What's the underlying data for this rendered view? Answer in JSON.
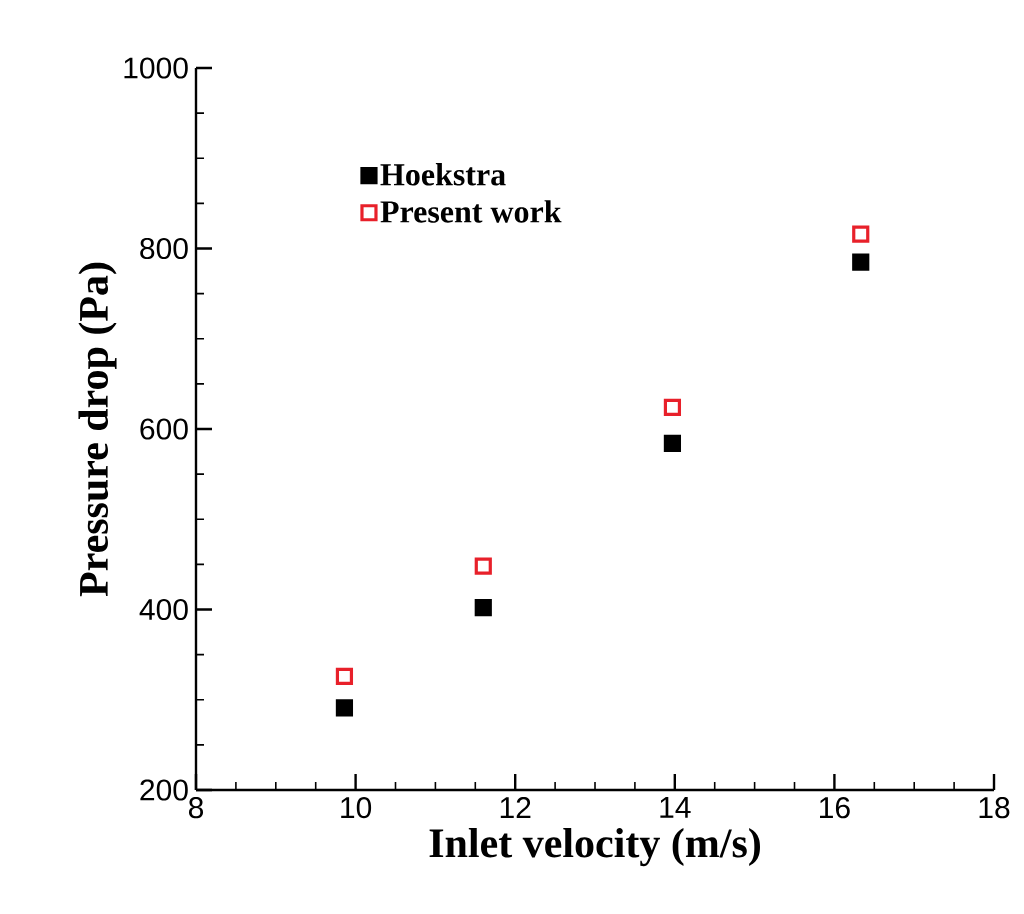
{
  "chart_data": {
    "type": "scatter",
    "xlabel": "Inlet velocity (m/s)",
    "ylabel": "Pressure drop (Pa)",
    "xlim": [
      8,
      18
    ],
    "xticks": [
      8,
      10,
      12,
      14,
      16,
      18
    ],
    "ylim": [
      200,
      1000
    ],
    "yticks": [
      200,
      400,
      600,
      800,
      1000
    ],
    "marker": "square",
    "legend": "top left",
    "grid": false,
    "series": [
      {
        "name": "Hoekstra",
        "color": "#000000",
        "x": [
          9.86,
          11.6,
          13.97,
          16.33
        ],
        "values": [
          291,
          402,
          584,
          785
        ]
      },
      {
        "name": "Present work",
        "color": "#e8202a",
        "x": [
          9.86,
          11.6,
          13.97,
          16.33
        ],
        "values": [
          326,
          448,
          624,
          816
        ]
      }
    ]
  }
}
